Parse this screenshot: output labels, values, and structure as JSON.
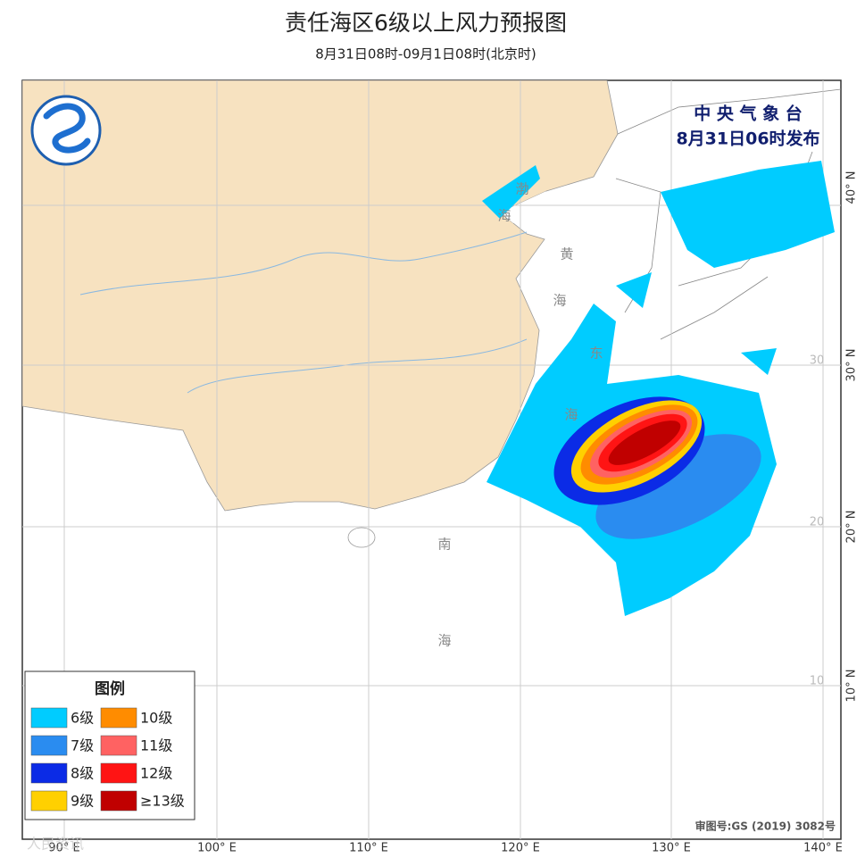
{
  "header": {
    "title": "责任海区6级以上风力预报图",
    "subtitle": "8月31日08时-09月1日08时(北京时)"
  },
  "issuer": {
    "name": "中 央 气 象 台",
    "time": "8月31日06时发布"
  },
  "legend": {
    "title": "图例",
    "items": [
      {
        "label": "6级",
        "color": "#00ccff"
      },
      {
        "label": "7级",
        "color": "#2a8cf0"
      },
      {
        "label": "8级",
        "color": "#0b2be6"
      },
      {
        "label": "9级",
        "color": "#ffd000"
      },
      {
        "label": "10级",
        "color": "#ff8c00"
      },
      {
        "label": "11级",
        "color": "#ff6262"
      },
      {
        "label": "12级",
        "color": "#ff1414"
      },
      {
        "label": "≥13级",
        "color": "#c00000"
      }
    ]
  },
  "axes": {
    "longitude": [
      "90° E",
      "100° E",
      "110° E",
      "120° E",
      "130° E",
      "140° E"
    ],
    "latitude": [
      "40° N",
      "30° N",
      "20° N",
      "10° N"
    ],
    "grid_labels": [
      "30",
      "20",
      "10"
    ]
  },
  "sea_labels": {
    "bohai": [
      "渤",
      "海"
    ],
    "huanghai": [
      "黄",
      "海"
    ],
    "donghai": [
      "东",
      "海"
    ],
    "nanhai": [
      "南",
      "海"
    ]
  },
  "approval": "审图号:GS (2019) 3082号",
  "watermark": "人民资讯"
}
